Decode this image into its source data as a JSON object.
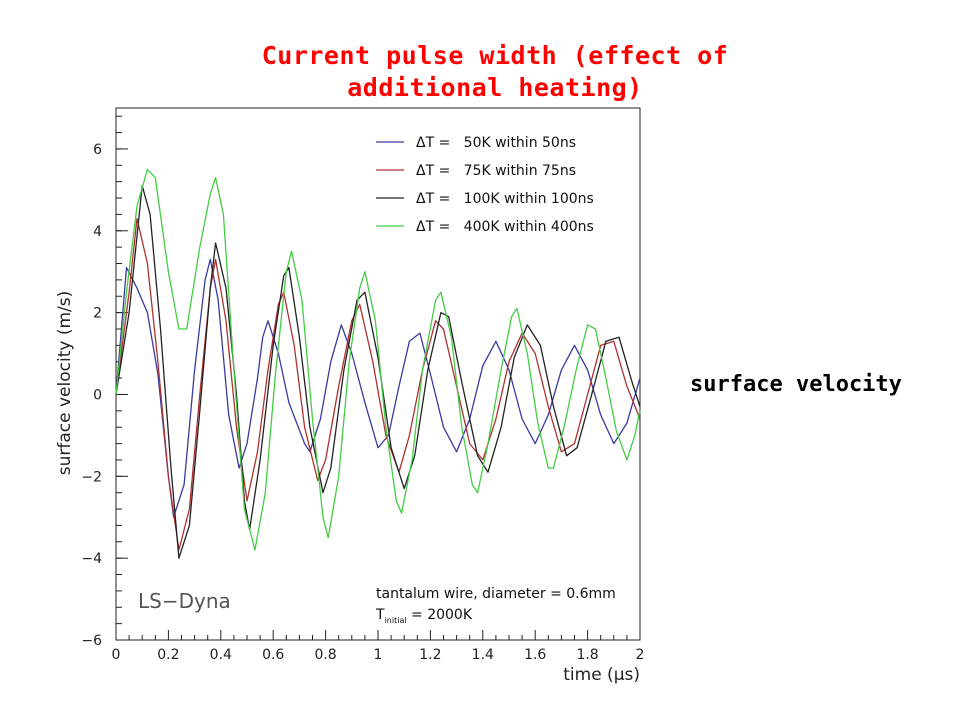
{
  "slide": {
    "title_line1": "Current pulse width (effect of",
    "title_line2": "additional heating)",
    "side_label": "surface velocity"
  },
  "chart_data": {
    "type": "line",
    "xlabel": "time (μs)",
    "ylabel": "surface velocity (m/s)",
    "xlim": [
      0,
      2
    ],
    "ylim": [
      -6,
      7
    ],
    "xticks": [
      "0",
      "0.2",
      "0.4",
      "0.6",
      "0.8",
      "1",
      "1.2",
      "1.4",
      "1.6",
      "1.8",
      "2"
    ],
    "xtick_values": [
      0,
      0.2,
      0.4,
      0.6,
      0.8,
      1,
      1.2,
      1.4,
      1.6,
      1.8,
      2
    ],
    "yticks": [
      "−6",
      "−4",
      "−2",
      "0",
      "2",
      "4",
      "6"
    ],
    "ytick_values": [
      -6,
      -4,
      -2,
      0,
      2,
      4,
      6
    ],
    "grid": false,
    "legend_position": "top-right",
    "annotations": {
      "software": "LS−Dyna",
      "wire": "tantalum wire, diameter = 0.6mm",
      "tinit_prefix": "T",
      "tinit_sub": "initial",
      "tinit_value": " = 2000K"
    },
    "series": [
      {
        "name": "ΔT =   50K within 50ns",
        "color": "#3a3aa0",
        "points": [
          [
            0,
            0
          ],
          [
            0.04,
            3.1
          ],
          [
            0.08,
            2.6
          ],
          [
            0.12,
            2.0
          ],
          [
            0.16,
            0.5
          ],
          [
            0.2,
            -2.0
          ],
          [
            0.22,
            -3.0
          ],
          [
            0.26,
            -2.2
          ],
          [
            0.3,
            0.6
          ],
          [
            0.34,
            2.8
          ],
          [
            0.36,
            3.3
          ],
          [
            0.39,
            2.3
          ],
          [
            0.43,
            -0.5
          ],
          [
            0.47,
            -1.8
          ],
          [
            0.5,
            -1.2
          ],
          [
            0.54,
            0.4
          ],
          [
            0.56,
            1.4
          ],
          [
            0.58,
            1.8
          ],
          [
            0.62,
            1.0
          ],
          [
            0.66,
            -0.2
          ],
          [
            0.72,
            -1.2
          ],
          [
            0.74,
            -1.4
          ],
          [
            0.78,
            -0.6
          ],
          [
            0.82,
            0.8
          ],
          [
            0.86,
            1.7
          ],
          [
            0.9,
            1.0
          ],
          [
            0.95,
            -0.2
          ],
          [
            1.0,
            -1.3
          ],
          [
            1.04,
            -1.0
          ],
          [
            1.08,
            0.2
          ],
          [
            1.12,
            1.3
          ],
          [
            1.16,
            1.5
          ],
          [
            1.2,
            0.5
          ],
          [
            1.25,
            -0.8
          ],
          [
            1.3,
            -1.4
          ],
          [
            1.35,
            -0.6
          ],
          [
            1.4,
            0.7
          ],
          [
            1.45,
            1.3
          ],
          [
            1.5,
            0.6
          ],
          [
            1.55,
            -0.6
          ],
          [
            1.6,
            -1.2
          ],
          [
            1.65,
            -0.5
          ],
          [
            1.7,
            0.6
          ],
          [
            1.75,
            1.2
          ],
          [
            1.8,
            0.6
          ],
          [
            1.85,
            -0.5
          ],
          [
            1.9,
            -1.2
          ],
          [
            1.95,
            -0.7
          ],
          [
            2.0,
            0.4
          ]
        ]
      },
      {
        "name": "ΔT =   75K within 75ns",
        "color": "#b03030",
        "points": [
          [
            0,
            0
          ],
          [
            0.05,
            2.5
          ],
          [
            0.08,
            4.3
          ],
          [
            0.12,
            3.2
          ],
          [
            0.16,
            0.8
          ],
          [
            0.2,
            -2.0
          ],
          [
            0.24,
            -3.8
          ],
          [
            0.28,
            -2.8
          ],
          [
            0.32,
            0.0
          ],
          [
            0.36,
            2.6
          ],
          [
            0.38,
            3.3
          ],
          [
            0.42,
            1.8
          ],
          [
            0.46,
            -0.8
          ],
          [
            0.5,
            -2.6
          ],
          [
            0.54,
            -1.4
          ],
          [
            0.58,
            0.6
          ],
          [
            0.62,
            2.2
          ],
          [
            0.64,
            2.5
          ],
          [
            0.68,
            1.2
          ],
          [
            0.72,
            -0.8
          ],
          [
            0.77,
            -2.1
          ],
          [
            0.8,
            -1.6
          ],
          [
            0.85,
            0.2
          ],
          [
            0.9,
            1.8
          ],
          [
            0.93,
            2.2
          ],
          [
            0.98,
            0.8
          ],
          [
            1.03,
            -1.0
          ],
          [
            1.08,
            -1.9
          ],
          [
            1.12,
            -1.0
          ],
          [
            1.17,
            0.6
          ],
          [
            1.22,
            1.8
          ],
          [
            1.25,
            1.6
          ],
          [
            1.3,
            0.2
          ],
          [
            1.35,
            -1.2
          ],
          [
            1.4,
            -1.6
          ],
          [
            1.45,
            -0.6
          ],
          [
            1.5,
            0.8
          ],
          [
            1.55,
            1.5
          ],
          [
            1.6,
            1.0
          ],
          [
            1.65,
            -0.3
          ],
          [
            1.7,
            -1.4
          ],
          [
            1.75,
            -1.2
          ],
          [
            1.8,
            0.0
          ],
          [
            1.85,
            1.2
          ],
          [
            1.9,
            1.3
          ],
          [
            1.95,
            0.2
          ],
          [
            2.0,
            -0.6
          ]
        ]
      },
      {
        "name": "ΔT =   100K within 100ns",
        "color": "#222222",
        "points": [
          [
            0,
            0
          ],
          [
            0.05,
            2.0
          ],
          [
            0.1,
            5.1
          ],
          [
            0.13,
            4.4
          ],
          [
            0.17,
            1.6
          ],
          [
            0.21,
            -1.8
          ],
          [
            0.24,
            -4.0
          ],
          [
            0.28,
            -3.2
          ],
          [
            0.32,
            -0.4
          ],
          [
            0.36,
            2.6
          ],
          [
            0.38,
            3.7
          ],
          [
            0.42,
            2.6
          ],
          [
            0.46,
            0.0
          ],
          [
            0.49,
            -2.6
          ],
          [
            0.51,
            -3.3
          ],
          [
            0.55,
            -1.6
          ],
          [
            0.6,
            1.2
          ],
          [
            0.64,
            2.9
          ],
          [
            0.66,
            3.1
          ],
          [
            0.7,
            1.4
          ],
          [
            0.74,
            -0.8
          ],
          [
            0.79,
            -2.4
          ],
          [
            0.82,
            -1.8
          ],
          [
            0.87,
            0.6
          ],
          [
            0.92,
            2.3
          ],
          [
            0.95,
            2.5
          ],
          [
            1.0,
            0.9
          ],
          [
            1.05,
            -1.3
          ],
          [
            1.1,
            -2.3
          ],
          [
            1.14,
            -1.5
          ],
          [
            1.19,
            0.6
          ],
          [
            1.24,
            2.0
          ],
          [
            1.27,
            1.9
          ],
          [
            1.32,
            0.3
          ],
          [
            1.38,
            -1.5
          ],
          [
            1.42,
            -1.9
          ],
          [
            1.47,
            -0.8
          ],
          [
            1.52,
            0.9
          ],
          [
            1.57,
            1.7
          ],
          [
            1.62,
            1.2
          ],
          [
            1.67,
            -0.3
          ],
          [
            1.72,
            -1.5
          ],
          [
            1.76,
            -1.3
          ],
          [
            1.82,
            0.1
          ],
          [
            1.87,
            1.3
          ],
          [
            1.92,
            1.4
          ],
          [
            1.97,
            0.3
          ],
          [
            2.0,
            -0.3
          ]
        ]
      },
      {
        "name": "ΔT =   400K within 400ns",
        "color": "#44cc44",
        "points": [
          [
            0,
            0
          ],
          [
            0.04,
            2.5
          ],
          [
            0.08,
            4.6
          ],
          [
            0.12,
            5.5
          ],
          [
            0.15,
            5.3
          ],
          [
            0.2,
            3.0
          ],
          [
            0.24,
            1.6
          ],
          [
            0.27,
            1.6
          ],
          [
            0.32,
            3.6
          ],
          [
            0.36,
            4.9
          ],
          [
            0.38,
            5.3
          ],
          [
            0.41,
            4.4
          ],
          [
            0.45,
            0.6
          ],
          [
            0.49,
            -2.8
          ],
          [
            0.53,
            -3.8
          ],
          [
            0.57,
            -2.4
          ],
          [
            0.61,
            0.6
          ],
          [
            0.65,
            3.0
          ],
          [
            0.67,
            3.5
          ],
          [
            0.71,
            2.3
          ],
          [
            0.75,
            -0.6
          ],
          [
            0.79,
            -3.0
          ],
          [
            0.81,
            -3.5
          ],
          [
            0.85,
            -2.0
          ],
          [
            0.89,
            0.8
          ],
          [
            0.93,
            2.6
          ],
          [
            0.95,
            3.0
          ],
          [
            0.99,
            1.8
          ],
          [
            1.03,
            -0.8
          ],
          [
            1.07,
            -2.6
          ],
          [
            1.09,
            -2.9
          ],
          [
            1.13,
            -1.6
          ],
          [
            1.17,
            0.6
          ],
          [
            1.22,
            2.3
          ],
          [
            1.24,
            2.5
          ],
          [
            1.28,
            1.4
          ],
          [
            1.32,
            -0.8
          ],
          [
            1.36,
            -2.2
          ],
          [
            1.38,
            -2.4
          ],
          [
            1.42,
            -1.2
          ],
          [
            1.47,
            0.6
          ],
          [
            1.51,
            1.9
          ],
          [
            1.53,
            2.1
          ],
          [
            1.57,
            1.0
          ],
          [
            1.61,
            -0.7
          ],
          [
            1.65,
            -1.8
          ],
          [
            1.67,
            -1.8
          ],
          [
            1.71,
            -0.8
          ],
          [
            1.76,
            0.7
          ],
          [
            1.8,
            1.7
          ],
          [
            1.83,
            1.6
          ],
          [
            1.87,
            0.4
          ],
          [
            1.91,
            -0.9
          ],
          [
            1.95,
            -1.6
          ],
          [
            1.98,
            -1.0
          ],
          [
            2.0,
            -0.4
          ]
        ]
      }
    ]
  }
}
